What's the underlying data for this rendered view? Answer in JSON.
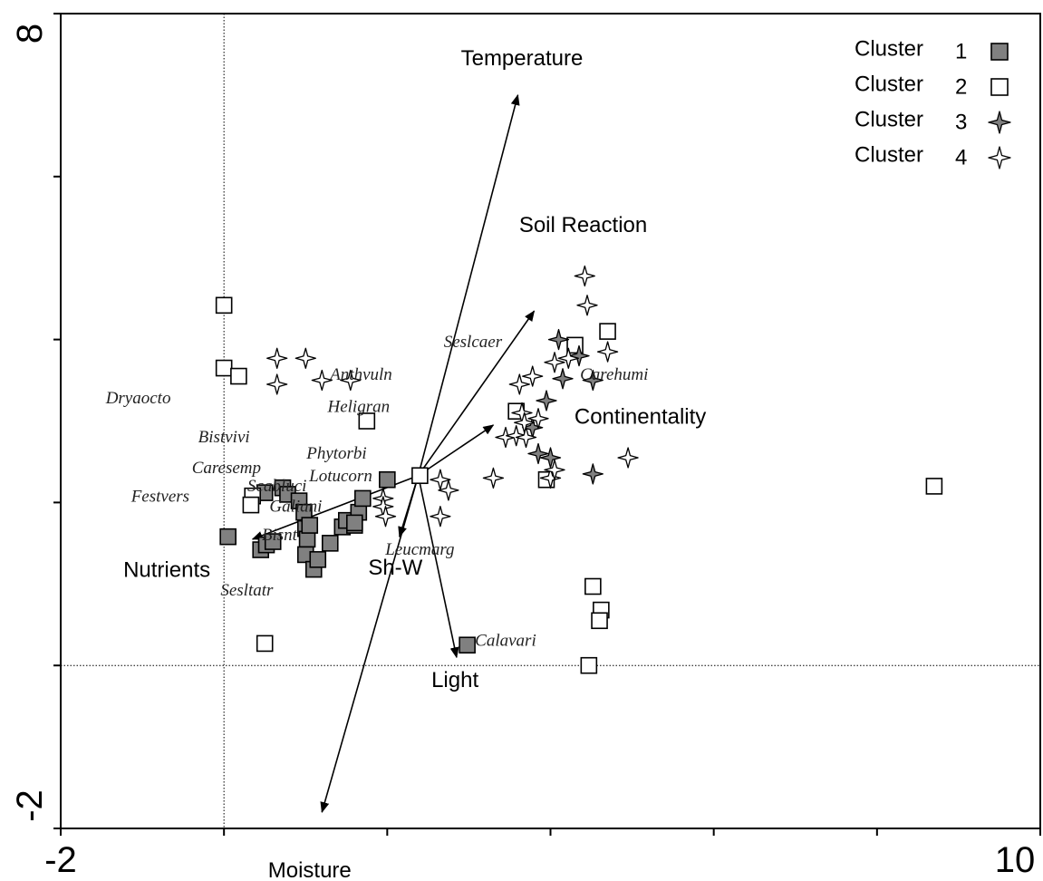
{
  "chart_data": {
    "type": "scatter",
    "xlim": [
      -2,
      10
    ],
    "ylim": [
      -2,
      8
    ],
    "x_tick_labels": [
      "-2",
      "10"
    ],
    "y_tick_labels": [
      "-2",
      "8"
    ],
    "reference_lines": {
      "x": 0,
      "y": 0
    },
    "legend": {
      "placement": "top-right",
      "entries": [
        {
          "label": "Cluster",
          "number": "1",
          "marker": "square",
          "fill": "#808080"
        },
        {
          "label": "Cluster",
          "number": "2",
          "marker": "square",
          "fill": "#ffffff"
        },
        {
          "label": "Cluster",
          "number": "3",
          "marker": "star",
          "fill": "#808080"
        },
        {
          "label": "Cluster",
          "number": "4",
          "marker": "star",
          "fill": "#ffffff"
        }
      ]
    },
    "series": [
      {
        "cluster": "1",
        "marker": "square",
        "fill": "#808080",
        "points": [
          [
            0.05,
            1.58
          ],
          [
            0.45,
            1.42
          ],
          [
            0.52,
            1.48
          ],
          [
            0.6,
            1.52
          ],
          [
            0.5,
            2.12
          ],
          [
            0.72,
            2.18
          ],
          [
            0.78,
            2.1
          ],
          [
            0.92,
            2.02
          ],
          [
            0.98,
            1.88
          ],
          [
            1.0,
            1.68
          ],
          [
            1.02,
            1.55
          ],
          [
            1.0,
            1.36
          ],
          [
            1.1,
            1.18
          ],
          [
            1.15,
            1.3
          ],
          [
            1.3,
            1.5
          ],
          [
            1.45,
            1.7
          ],
          [
            1.5,
            1.78
          ],
          [
            1.6,
            1.72
          ],
          [
            1.65,
            1.88
          ],
          [
            1.7,
            2.05
          ],
          [
            1.6,
            1.75
          ],
          [
            1.05,
            1.72
          ],
          [
            2.0,
            2.28
          ],
          [
            2.98,
            0.25
          ]
        ]
      },
      {
        "cluster": "2",
        "marker": "square",
        "fill": "#ffffff",
        "points": [
          [
            0.0,
            4.42
          ],
          [
            0.0,
            3.65
          ],
          [
            0.18,
            3.55
          ],
          [
            0.35,
            2.08
          ],
          [
            0.33,
            1.97
          ],
          [
            0.5,
            0.27
          ],
          [
            1.75,
            3.0
          ],
          [
            2.4,
            2.33
          ],
          [
            3.58,
            3.12
          ],
          [
            3.95,
            2.28
          ],
          [
            4.3,
            3.93
          ],
          [
            4.7,
            4.1
          ],
          [
            4.52,
            0.97
          ],
          [
            4.62,
            0.68
          ],
          [
            4.6,
            0.55
          ],
          [
            4.47,
            0.0
          ],
          [
            8.7,
            2.2
          ]
        ]
      },
      {
        "cluster": "3",
        "marker": "star",
        "fill": "#808080",
        "points": [
          [
            4.1,
            4.0
          ],
          [
            4.15,
            3.52
          ],
          [
            4.52,
            3.5
          ],
          [
            3.95,
            3.25
          ],
          [
            3.78,
            2.92
          ],
          [
            3.85,
            2.6
          ],
          [
            4.52,
            2.35
          ],
          [
            4.0,
            2.55
          ],
          [
            4.35,
            3.8
          ]
        ]
      },
      {
        "cluster": "4",
        "marker": "star",
        "fill": "#ffffff",
        "points": [
          [
            0.65,
            3.77
          ],
          [
            1.0,
            3.77
          ],
          [
            1.55,
            3.5
          ],
          [
            1.2,
            3.5
          ],
          [
            0.65,
            3.45
          ],
          [
            4.42,
            4.78
          ],
          [
            4.45,
            4.42
          ],
          [
            4.7,
            3.85
          ],
          [
            4.22,
            3.77
          ],
          [
            4.05,
            3.72
          ],
          [
            3.78,
            3.55
          ],
          [
            3.62,
            3.45
          ],
          [
            3.85,
            3.03
          ],
          [
            3.65,
            3.1
          ],
          [
            3.68,
            2.98
          ],
          [
            3.45,
            2.8
          ],
          [
            3.58,
            2.82
          ],
          [
            3.7,
            2.8
          ],
          [
            4.0,
            2.3
          ],
          [
            4.05,
            2.4
          ],
          [
            4.95,
            2.55
          ],
          [
            3.3,
            2.3
          ],
          [
            2.75,
            2.15
          ],
          [
            2.65,
            1.83
          ],
          [
            2.65,
            2.28
          ],
          [
            1.95,
            2.05
          ],
          [
            1.95,
            1.95
          ],
          [
            1.98,
            1.83
          ]
        ]
      }
    ],
    "vectors": [
      {
        "label": "Temperature",
        "to": [
          3.6,
          7.0
        ],
        "label_at": [
          3.65,
          7.45
        ]
      },
      {
        "label": "Soil Reaction",
        "to": [
          3.8,
          4.35
        ],
        "label_at": [
          4.4,
          5.4
        ]
      },
      {
        "label": "Continentality",
        "to": [
          3.3,
          2.95
        ],
        "label_at": [
          5.1,
          3.05
        ]
      },
      {
        "label": "Nutrients",
        "to": [
          0.35,
          1.55
        ],
        "label_at": [
          -0.7,
          1.17
        ]
      },
      {
        "label": "Sh-W",
        "to": [
          2.15,
          1.58
        ],
        "label_at": [
          2.1,
          1.2
        ]
      },
      {
        "label": "Light",
        "to": [
          2.85,
          0.1
        ],
        "label_at": [
          2.83,
          -0.18
        ]
      },
      {
        "label": "Moisture",
        "to": [
          1.2,
          -1.8
        ],
        "label_at": [
          1.05,
          -2.52
        ]
      }
    ],
    "vector_origin": [
      2.38,
      2.33
    ],
    "species_labels": [
      {
        "text": "Dryaocto",
        "at": [
          -1.05,
          3.28
        ]
      },
      {
        "text": "Bistvivi",
        "at": [
          0.0,
          2.8
        ]
      },
      {
        "text": "Caresemp",
        "at": [
          0.03,
          2.42
        ]
      },
      {
        "text": "Festvers",
        "at": [
          -0.78,
          2.07
        ]
      },
      {
        "text": "Scabluci",
        "at": [
          0.65,
          2.2
        ]
      },
      {
        "text": "Galiani",
        "at": [
          0.88,
          1.95
        ]
      },
      {
        "text": "Bisnt",
        "at": [
          0.68,
          1.6
        ]
      },
      {
        "text": "Sesltatr",
        "at": [
          0.28,
          0.92
        ]
      },
      {
        "text": "Anthvuln",
        "at": [
          1.68,
          3.57
        ]
      },
      {
        "text": "Heligran",
        "at": [
          1.65,
          3.17
        ]
      },
      {
        "text": "Phytorbi",
        "at": [
          1.38,
          2.6
        ]
      },
      {
        "text": "Lotucorn",
        "at": [
          1.43,
          2.32
        ]
      },
      {
        "text": "Leucmarg",
        "at": [
          2.4,
          1.42
        ]
      },
      {
        "text": "Seslcaer",
        "at": [
          3.05,
          3.97
        ]
      },
      {
        "text": "Carehumi",
        "at": [
          4.78,
          3.57
        ]
      },
      {
        "text": "Calavari",
        "at": [
          3.45,
          0.3
        ]
      }
    ]
  }
}
